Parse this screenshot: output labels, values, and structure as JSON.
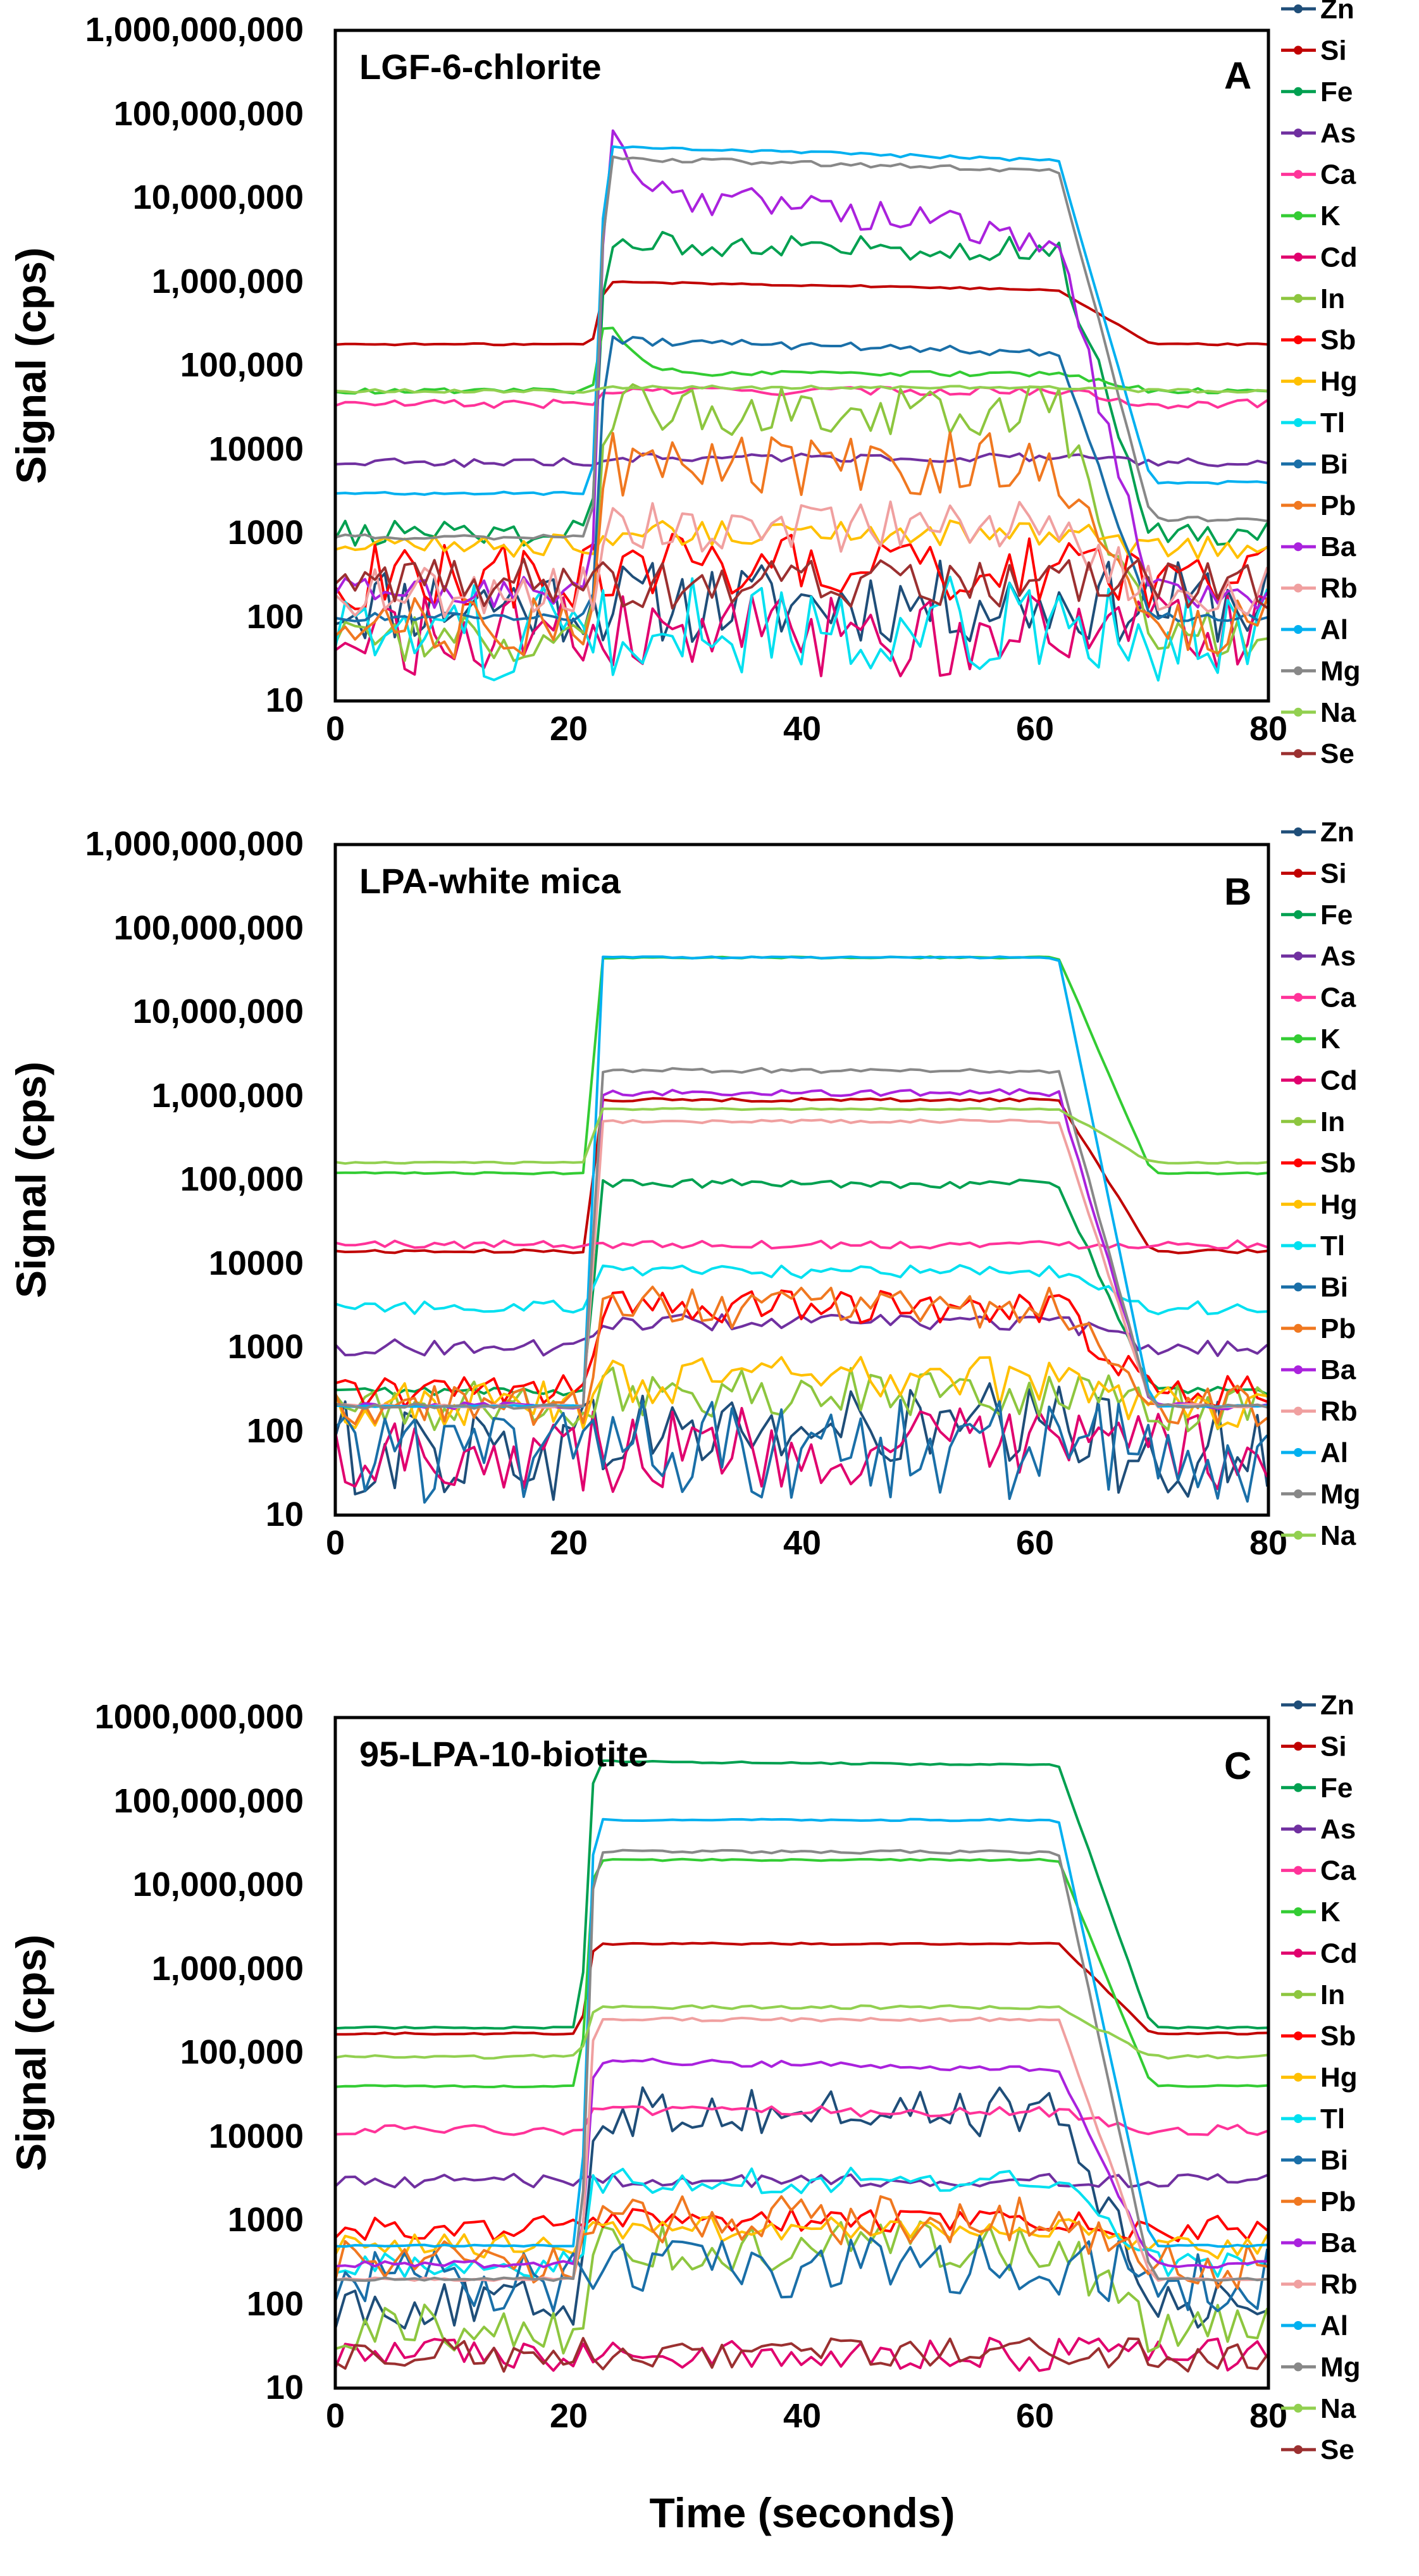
{
  "figure": {
    "xlabel": "Time (seconds)"
  },
  "colors": {
    "Zn": "#1f4e79",
    "Si": "#c00000",
    "Fe": "#00a050",
    "As": "#7030a0",
    "Ca": "#ff3399",
    "K": "#33cc33",
    "Cd": "#e0006e",
    "In": "#8dc63f",
    "Sb": "#ff0000",
    "Hg": "#ffc000",
    "Tl": "#00e0f0",
    "Bi": "#1a6fa8",
    "Pb": "#f07820",
    "Ba": "#aa22dd",
    "Rb": "#f0a0a0",
    "Al": "#00b0f0",
    "Mg": "#888888",
    "Na": "#92d050",
    "Se": "#9b3030"
  },
  "chart_data": [
    {
      "type": "line",
      "title": "LGF-6-chlorite",
      "panel_label": "A",
      "xlabel": "",
      "ylabel": "Signal (cps)",
      "yscale": "log",
      "xlim": [
        0,
        80
      ],
      "ylim": [
        10,
        1000000000
      ],
      "xticks": [
        "0",
        "20",
        "40",
        "60",
        "80"
      ],
      "yticks": [
        "10",
        "100",
        "1000",
        "10000",
        "100,000",
        "1,000,000",
        "10,000,000",
        "100,000,000",
        "1,000,000,000"
      ],
      "legend": [
        "Zn",
        "Si",
        "Fe",
        "As",
        "Ca",
        "K",
        "Cd",
        "In",
        "Sb",
        "Hg",
        "Tl",
        "Bi",
        "Pb",
        "Ba",
        "Rb",
        "Al",
        "Mg",
        "Na",
        "Se"
      ],
      "ablation_start": 22,
      "ablation_end": 62,
      "series": [
        {
          "name": "Zn",
          "bg": 150,
          "peak": 150,
          "noise": 0.5
        },
        {
          "name": "Si",
          "bg": 180000,
          "peak": 1000000,
          "end_ratio": 0.8,
          "noise": 0.01
        },
        {
          "name": "Fe",
          "bg": 1000,
          "peak": 3000000,
          "end_ratio": 0.8,
          "tail": 1000,
          "noise": 0.15
        },
        {
          "name": "As",
          "bg": 7000,
          "peak": 8000,
          "noise": 0.05
        },
        {
          "name": "Ca",
          "bg": 35000,
          "peak": 50000,
          "noise": 0.05
        },
        {
          "name": "K",
          "bg": 50000,
          "peak": 400000,
          "plateau": 80000,
          "noise": 0.03
        },
        {
          "name": "Cd",
          "bg": 60,
          "peak": 60,
          "noise": 0.5
        },
        {
          "name": "In",
          "bg": 60,
          "peak": 30000,
          "noise": 0.3
        },
        {
          "name": "Sb",
          "bg": 300,
          "peak": 400,
          "noise": 0.4
        },
        {
          "name": "Hg",
          "bg": 700,
          "peak": 1000,
          "noise": 0.15
        },
        {
          "name": "Tl",
          "bg": 60,
          "peak": 80,
          "noise": 0.6
        },
        {
          "name": "Bi",
          "bg": 100,
          "peak": 200000,
          "end_ratio": 0.7,
          "noise": 0.05
        },
        {
          "name": "Pb",
          "bg": 70,
          "peak": 7000,
          "noise": 0.4
        },
        {
          "name": "Ba",
          "bg": 200,
          "peak": 60000000,
          "plateau": 12000000,
          "end_ratio": 0.2,
          "noise": 0.2
        },
        {
          "name": "Rb",
          "bg": 200,
          "peak": 1200,
          "noise": 0.3
        },
        {
          "name": "Al",
          "bg": 3000,
          "peak": 40000000,
          "end_ratio": 0.7,
          "tail": 4000,
          "noise": 0.02
        },
        {
          "name": "Mg",
          "bg": 900,
          "peak": 30000000,
          "end_ratio": 0.7,
          "tail": 1500,
          "noise": 0.03
        },
        {
          "name": "Na",
          "bg": 50000,
          "peak": 55000,
          "noise": 0.02
        },
        {
          "name": "Se",
          "bg": 250,
          "peak": 250,
          "noise": 0.3
        }
      ]
    },
    {
      "type": "line",
      "title": "LPA-white mica",
      "panel_label": "B",
      "xlabel": "",
      "ylabel": "Signal (cps)",
      "yscale": "log",
      "xlim": [
        0,
        80
      ],
      "ylim": [
        10,
        1000000000
      ],
      "xticks": [
        "0",
        "20",
        "40",
        "60",
        "80"
      ],
      "yticks": [
        "10",
        "100",
        "1000",
        "10000",
        "100,000",
        "1,000,000",
        "10,000,000",
        "100,000,000",
        "1,000,000,000"
      ],
      "legend": [
        "Zn",
        "Si",
        "Fe",
        "As",
        "Ca",
        "K",
        "Cd",
        "In",
        "Sb",
        "Hg",
        "Tl",
        "Bi",
        "Pb",
        "Ba",
        "Rb",
        "Al",
        "Mg",
        "Na"
      ],
      "ablation_start": 21.5,
      "ablation_end": 62,
      "series": [
        {
          "name": "Zn",
          "bg": 60,
          "peak": 100,
          "noise": 0.6
        },
        {
          "name": "Si",
          "bg": 14000,
          "peak": 900000,
          "end_ratio": 1.0,
          "noise": 0.02
        },
        {
          "name": "Fe",
          "bg": 300,
          "peak": 90000,
          "end_ratio": 1.0,
          "noise": 0.05
        },
        {
          "name": "As",
          "bg": 1000,
          "peak": 2000,
          "noise": 0.1
        },
        {
          "name": "Ca",
          "bg": 17000,
          "peak": 17000,
          "noise": 0.05
        },
        {
          "name": "K",
          "bg": 120000,
          "peak": 45000000,
          "end_ratio": 1.0,
          "noise": 0.01
        },
        {
          "name": "Cd",
          "bg": 60,
          "peak": 60,
          "noise": 0.5
        },
        {
          "name": "In",
          "bg": 200,
          "peak": 300,
          "noise": 0.3
        },
        {
          "name": "Sb",
          "bg": 300,
          "peak": 3000,
          "noise": 0.2
        },
        {
          "name": "Hg",
          "bg": 200,
          "peak": 400,
          "noise": 0.3
        },
        {
          "name": "Tl",
          "bg": 3000,
          "peak": 8000,
          "noise": 0.08
        },
        {
          "name": "Bi",
          "bg": 50,
          "peak": 60,
          "noise": 0.6
        },
        {
          "name": "Pb",
          "bg": 200,
          "peak": 3000,
          "noise": 0.25
        },
        {
          "name": "Ba",
          "bg": 200,
          "peak": 1100000,
          "end_ratio": 1.0,
          "noise": 0.04
        },
        {
          "name": "Rb",
          "bg": 200,
          "peak": 500000,
          "end_ratio": 1.0,
          "noise": 0.02
        },
        {
          "name": "Al",
          "bg": 200,
          "peak": 45000000,
          "end_ratio": 1.0,
          "noise": 0.01
        },
        {
          "name": "Mg",
          "bg": 200,
          "peak": 2000000,
          "end_ratio": 1.0,
          "noise": 0.03
        },
        {
          "name": "Na",
          "bg": 160000,
          "peak": 700000,
          "end_ratio": 1.0,
          "noise": 0.01
        }
      ]
    },
    {
      "type": "line",
      "title": "95-LPA-10-biotite",
      "panel_label": "C",
      "xlabel": "Time (seconds)",
      "ylabel": "Signal (cps)",
      "yscale": "log",
      "xlim": [
        0,
        80
      ],
      "ylim": [
        10,
        1000000000
      ],
      "xticks": [
        "0",
        "20",
        "40",
        "60",
        "80"
      ],
      "yticks": [
        "10",
        "100",
        "1000",
        "10000",
        "100,000",
        "1,000,000",
        "10,000,000",
        "100,000,000",
        "1000,000,000"
      ],
      "legend": [
        "Zn",
        "Si",
        "Fe",
        "As",
        "Ca",
        "K",
        "Cd",
        "In",
        "Sb",
        "Hg",
        "Tl",
        "Bi",
        "Pb",
        "Ba",
        "Rb",
        "Al",
        "Mg",
        "Na",
        "Se"
      ],
      "ablation_start": 21,
      "ablation_end": 62,
      "series": [
        {
          "name": "Zn",
          "bg": 100,
          "peak": 20000,
          "end_ratio": 1.0,
          "noise": 0.3
        },
        {
          "name": "Si",
          "bg": 170000,
          "peak": 2000000,
          "end_ratio": 1.0,
          "noise": 0.01
        },
        {
          "name": "Fe",
          "bg": 200000,
          "peak": 300000000,
          "end_ratio": 0.9,
          "noise": 0.01
        },
        {
          "name": "As",
          "bg": 3000,
          "peak": 3000,
          "noise": 0.08
        },
        {
          "name": "Ca",
          "bg": 12000,
          "peak": 20000,
          "noise": 0.06
        },
        {
          "name": "K",
          "bg": 40000,
          "peak": 20000000,
          "end_ratio": 1.0,
          "noise": 0.01
        },
        {
          "name": "Cd",
          "bg": 25,
          "peak": 25,
          "noise": 0.2
        },
        {
          "name": "In",
          "bg": 50,
          "peak": 500,
          "noise": 0.3
        },
        {
          "name": "Sb",
          "bg": 800,
          "peak": 1000,
          "noise": 0.15
        },
        {
          "name": "Hg",
          "bg": 500,
          "peak": 800,
          "noise": 0.15
        },
        {
          "name": "Tl",
          "bg": 300,
          "peak": 3000,
          "noise": 0.15
        },
        {
          "name": "Bi",
          "bg": 200,
          "peak": 300,
          "noise": 0.4
        },
        {
          "name": "Pb",
          "bg": 300,
          "peak": 1000,
          "noise": 0.3
        },
        {
          "name": "Ba",
          "bg": 300,
          "peak": 80000,
          "end_ratio": 0.8,
          "noise": 0.04
        },
        {
          "name": "Rb",
          "bg": 200,
          "peak": 250000,
          "end_ratio": 1.0,
          "noise": 0.02
        },
        {
          "name": "Al",
          "bg": 500,
          "peak": 60000000,
          "end_ratio": 1.0,
          "noise": 0.01
        },
        {
          "name": "Mg",
          "bg": 200,
          "peak": 25000000,
          "end_ratio": 1.0,
          "noise": 0.02
        },
        {
          "name": "Na",
          "bg": 90000,
          "peak": 350000,
          "end_ratio": 1.0,
          "noise": 0.02
        },
        {
          "name": "Se",
          "bg": 25,
          "peak": 25,
          "noise": 0.2
        }
      ]
    }
  ]
}
